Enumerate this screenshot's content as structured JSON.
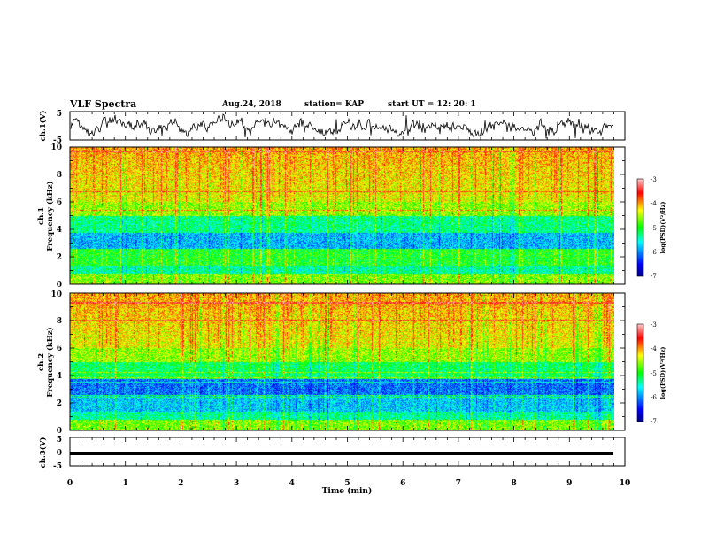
{
  "header": {
    "title": "VLF Spectra",
    "date": "Aug.24, 2018",
    "station": "station= KAP",
    "start": "start  UT  =   12: 20: 1"
  },
  "chart_data": [
    {
      "type": "line",
      "name": "ch1-waveform-panel",
      "ylabel": "ch.1(V)",
      "ylim": [
        -5,
        5
      ],
      "yticks": [
        "5",
        "-5"
      ],
      "xlim": [
        0,
        10
      ],
      "description_values": {
        "baseline": 0.0,
        "amplitude_typical": 2.5
      }
    },
    {
      "type": "heatmap",
      "name": "ch1-spectrogram",
      "ylabel_line1": "ch.1",
      "ylabel_line2": "Frequency  (kHz)",
      "ylim": [
        0,
        10
      ],
      "yticks": [
        "0",
        "2",
        "4",
        "6",
        "8",
        "10"
      ],
      "xlim": [
        0,
        9.8
      ],
      "colorbar": {
        "label": "log(PSD)(V²/Hz)",
        "range": [
          -7,
          -3
        ],
        "ticks": [
          "-3",
          "-4",
          "-5",
          "-6",
          "-7"
        ]
      }
    },
    {
      "type": "heatmap",
      "name": "ch2-spectrogram",
      "ylabel_line1": "ch.2",
      "ylabel_line2": "Frequency  (kHz)",
      "ylim": [
        0,
        10
      ],
      "yticks": [
        "0",
        "2",
        "4",
        "6",
        "8",
        "10"
      ],
      "xlim": [
        0,
        9.8
      ],
      "colorbar": {
        "label": "log(PSD)(V²/Hz)",
        "range": [
          -7,
          -3
        ],
        "ticks": [
          "-3",
          "-4",
          "-5",
          "-6",
          "-7"
        ]
      }
    },
    {
      "type": "line",
      "name": "ch3-waveform-panel",
      "ylabel": "ch.3(V)",
      "ylim": [
        -5,
        5
      ],
      "yticks": [
        "5",
        "0",
        "-5"
      ],
      "xlim": [
        0,
        10
      ],
      "description_values": {
        "constant_level": 0.0
      }
    }
  ],
  "xaxis": {
    "label": "Time  (min)",
    "ticks": [
      "0",
      "1",
      "2",
      "3",
      "4",
      "5",
      "6",
      "7",
      "8",
      "9",
      "10"
    ]
  }
}
